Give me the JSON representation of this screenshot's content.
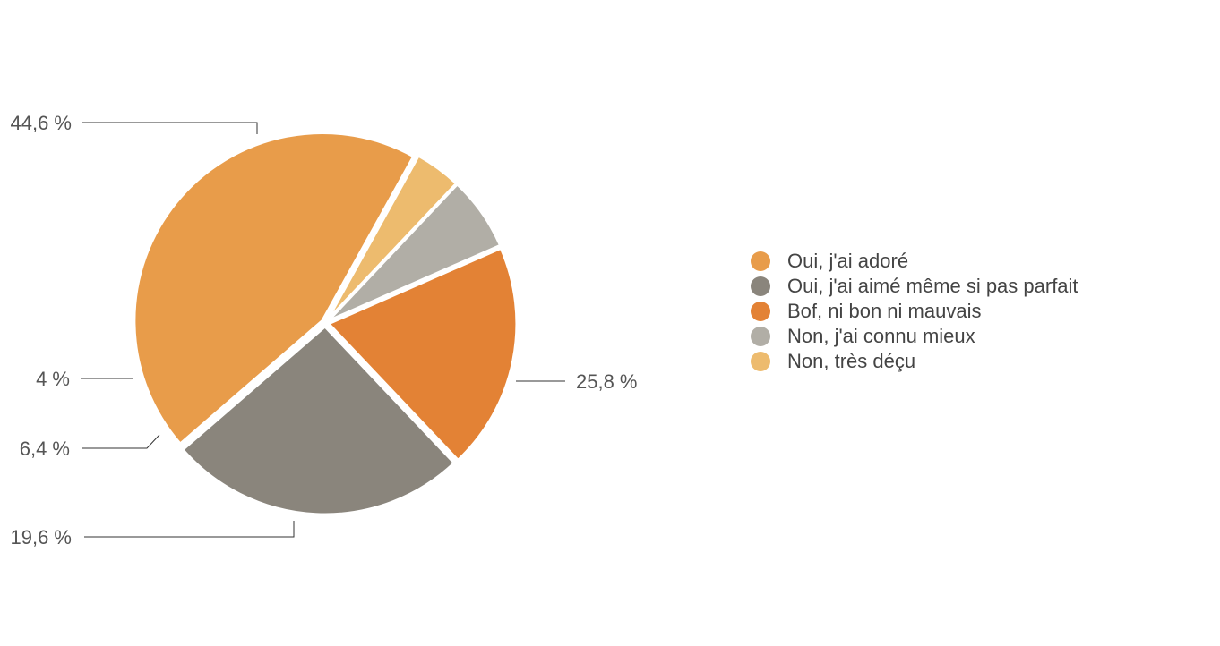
{
  "chart_data": {
    "type": "pie",
    "title": "",
    "legend_position": "right",
    "slices": [
      {
        "name": "Oui, j'ai adoré",
        "value": 44.6,
        "label": "44,6 %",
        "color": "#E89C4A"
      },
      {
        "name": "Oui, j'ai aimé même si pas parfait",
        "value": 25.8,
        "label": "25,8 %",
        "color": "#8A857C"
      },
      {
        "name": "Bof, ni bon ni mauvais",
        "value": 19.6,
        "label": "19,6 %",
        "color": "#E38235"
      },
      {
        "name": "Non, j'ai connu mieux",
        "value": 6.4,
        "label": "6,4 %",
        "color": "#B1AEA6"
      },
      {
        "name": "Non, très déçu",
        "value": 4.0,
        "label": "4 %",
        "color": "#EDBB6E"
      }
    ]
  }
}
